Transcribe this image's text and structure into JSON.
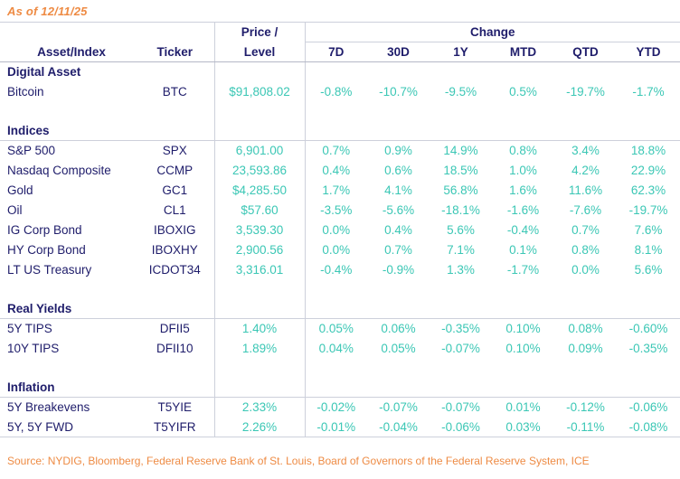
{
  "meta": {
    "as_of": "As of 12/11/25",
    "source": "Source: NYDIG, Bloomberg, Federal Reserve Bank of St. Louis, Board of Governors of the Federal Reserve System, ICE"
  },
  "colors": {
    "navy": "#1F1D6B",
    "teal": "#3BC7B5",
    "orange": "#EE8B44",
    "grid_line": "#CDD0DB",
    "header_line": "#B4B8C6"
  },
  "table": {
    "col_headers": {
      "asset": "Asset/Index",
      "ticker": "Ticker",
      "price_line1": "Price /",
      "price_line2": "Level",
      "change_group": "Change",
      "change_cols": [
        "7D",
        "30D",
        "1Y",
        "MTD",
        "QTD",
        "YTD"
      ]
    },
    "sections": [
      {
        "label": "Digital Asset",
        "divider": false,
        "rows": [
          {
            "asset": "Bitcoin",
            "ticker": "BTC",
            "price": "$91,808.02",
            "changes": [
              "-0.8%",
              "-10.7%",
              "-9.5%",
              "0.5%",
              "-19.7%",
              "-1.7%"
            ]
          }
        ]
      },
      {
        "label": "Indices",
        "divider": true,
        "rows": [
          {
            "asset": "S&P 500",
            "ticker": "SPX",
            "price": "6,901.00",
            "changes": [
              "0.7%",
              "0.9%",
              "14.9%",
              "0.8%",
              "3.4%",
              "18.8%"
            ]
          },
          {
            "asset": "Nasdaq Composite",
            "ticker": "CCMP",
            "price": "23,593.86",
            "changes": [
              "0.4%",
              "0.6%",
              "18.5%",
              "1.0%",
              "4.2%",
              "22.9%"
            ]
          },
          {
            "asset": "Gold",
            "ticker": "GC1",
            "price": "$4,285.50",
            "changes": [
              "1.7%",
              "4.1%",
              "56.8%",
              "1.6%",
              "11.6%",
              "62.3%"
            ]
          },
          {
            "asset": "Oil",
            "ticker": "CL1",
            "price": "$57.60",
            "changes": [
              "-3.5%",
              "-5.6%",
              "-18.1%",
              "-1.6%",
              "-7.6%",
              "-19.7%"
            ]
          },
          {
            "asset": "IG Corp Bond",
            "ticker": "IBOXIG",
            "price": "3,539.30",
            "changes": [
              "0.0%",
              "0.4%",
              "5.6%",
              "-0.4%",
              "0.7%",
              "7.6%"
            ]
          },
          {
            "asset": "HY Corp Bond",
            "ticker": "IBOXHY",
            "price": "2,900.56",
            "changes": [
              "0.0%",
              "0.7%",
              "7.1%",
              "0.1%",
              "0.8%",
              "8.1%"
            ]
          },
          {
            "asset": "LT US Treasury",
            "ticker": "ICDOT34",
            "price": "3,316.01",
            "changes": [
              "-0.4%",
              "-0.9%",
              "1.3%",
              "-1.7%",
              "0.0%",
              "5.6%"
            ]
          }
        ]
      },
      {
        "label": "Real Yields",
        "divider": true,
        "rows": [
          {
            "asset": "5Y TIPS",
            "ticker": "DFII5",
            "price": "1.40%",
            "changes": [
              "0.05%",
              "0.06%",
              "-0.35%",
              "0.10%",
              "0.08%",
              "-0.60%"
            ]
          },
          {
            "asset": "10Y TIPS",
            "ticker": "DFII10",
            "price": "1.89%",
            "changes": [
              "0.04%",
              "0.05%",
              "-0.07%",
              "0.10%",
              "0.09%",
              "-0.35%"
            ]
          }
        ]
      },
      {
        "label": "Inflation",
        "divider": true,
        "rows": [
          {
            "asset": "5Y Breakevens",
            "ticker": "T5YIE",
            "price": "2.33%",
            "changes": [
              "-0.02%",
              "-0.07%",
              "-0.07%",
              "0.01%",
              "-0.12%",
              "-0.06%"
            ]
          },
          {
            "asset": "5Y, 5Y FWD",
            "ticker": "T5YIFR",
            "price": "2.26%",
            "changes": [
              "-0.01%",
              "-0.04%",
              "-0.06%",
              "0.03%",
              "-0.11%",
              "-0.08%"
            ]
          }
        ]
      }
    ]
  }
}
